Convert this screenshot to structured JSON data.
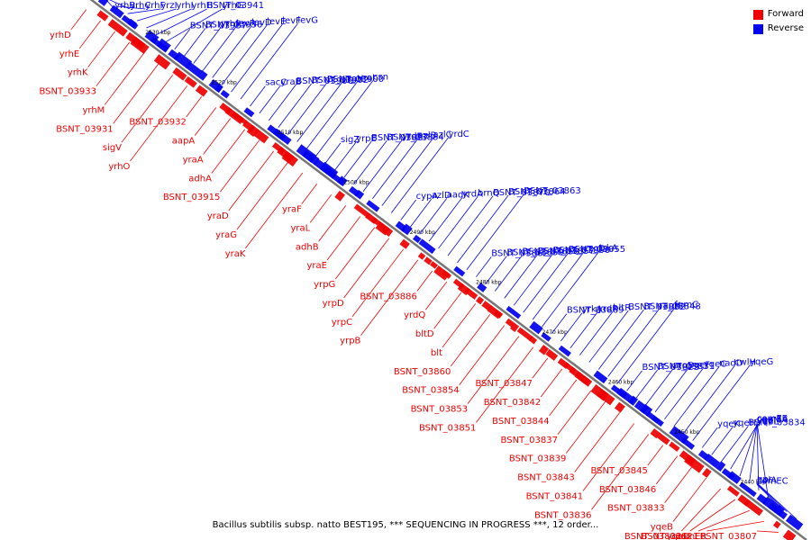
{
  "caption": "Bacillus subtilis subsp. natto BEST195, *** SEQUENCING IN PROGRESS ***, 12 order...",
  "legend": [
    {
      "label": "Forward",
      "color": "#ee0000"
    },
    {
      "label": "Reverse",
      "color": "#0000ee"
    }
  ],
  "colors": {
    "forward": "#ee0000",
    "reverse": "#0000ee",
    "axis": "#777777"
  },
  "scale_ticks": [
    "2530 kbp",
    "2520 kbp",
    "2510 kbp",
    "2500 kbp",
    "2490 kbp",
    "2480 kbp",
    "2470 kbp",
    "2460 kbp",
    "2450 kbp",
    "2440 kbp"
  ],
  "reverse_labels": [
    "yrhB",
    "yrhC",
    "yrhF",
    "yrzI",
    "yrhI",
    "yrhH",
    "BSNT_03941",
    "yrhG",
    "BSNT_03937",
    "BSNT_03936",
    "yrhP",
    "levR",
    "levD",
    "levE",
    "levF",
    "levG",
    "sacC",
    "yraB",
    "BSNT_03906",
    "BSNT_03902",
    "BSNT_03900",
    "yraH",
    "yraI",
    "csn",
    "sigZ",
    "yrpE",
    "BSNT_03887",
    "BSNT_03884",
    "yrdF",
    "azlB",
    "azlC",
    "yrdC",
    "cypA",
    "azlD",
    "aadK",
    "yrdA",
    "brnQ",
    "BSNT_03870",
    "BSNT_03864",
    "BSNT_03863",
    "BSNT_03862",
    "BSNT_03859",
    "BSNT_03858",
    "BSNT_03857",
    "BSNT_03856",
    "BSNT_03855",
    "czcD",
    "trkA",
    "BSNT_03869",
    "yrkA",
    "yrdR",
    "bltR",
    "BSNT_03852",
    "BSNT_03848",
    "rapH",
    "fumC",
    "BSNT_03823",
    "BSNT_03831",
    "aroD",
    "yqeF",
    "yqeC",
    "nadD",
    "cwlH",
    "yqeG",
    "yqeK",
    "yqeH",
    "BSNT_03834",
    "yqeL",
    "yqeI",
    "yqeM",
    "comEA",
    "comEB",
    "comEC",
    "holA",
    "gpr"
  ],
  "forward_labels": [
    "yrhD",
    "yrhE",
    "yrhK",
    "BSNT_03933",
    "yrhM",
    "BSNT_03931",
    "sigV",
    "yrhO",
    "BSNT_03932",
    "aapA",
    "yraA",
    "adhA",
    "BSNT_03915",
    "yraD",
    "yraG",
    "yraK",
    "yraF",
    "yraL",
    "adhB",
    "yraE",
    "yrpG",
    "yrpD",
    "yrpC",
    "yrpB",
    "BSNT_03886",
    "yrdQ",
    "bltD",
    "blt",
    "BSNT_03860",
    "BSNT_03854",
    "BSNT_03853",
    "BSNT_03851",
    "BSNT_03847",
    "BSNT_03842",
    "BSNT_03844",
    "BSNT_03837",
    "BSNT_03839",
    "BSNT_03843",
    "BSNT_03841",
    "BSNT_03836",
    "BSNT_03845",
    "BSNT_03846",
    "BSNT_03833",
    "yqeB",
    "BSNT_03832",
    "yqeD",
    "BSNT_03821",
    "comER",
    "BSNT_03807"
  ]
}
